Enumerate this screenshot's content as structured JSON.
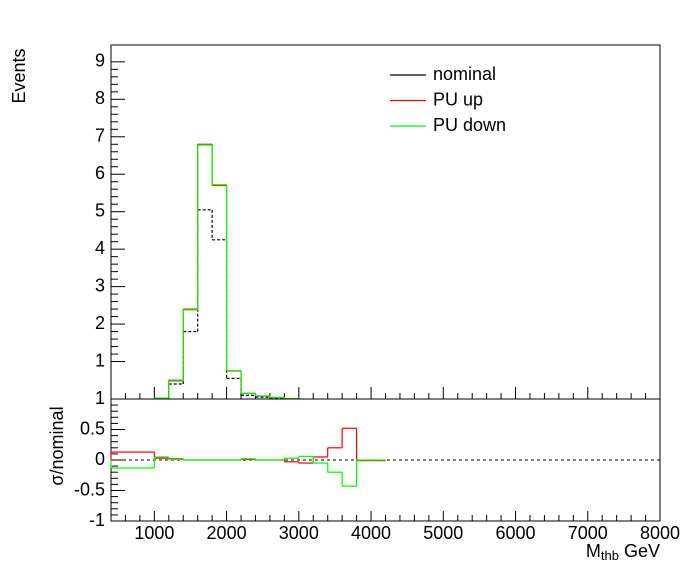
{
  "chart_data": [
    {
      "type": "histogram",
      "ylabel": "Events",
      "bins": [
        1000,
        1200,
        1400,
        1600,
        1800,
        2000,
        2200,
        2400,
        2600,
        2800,
        3000
      ],
      "series": [
        {
          "name": "nominal",
          "color": "#000000",
          "values": [
            0.01,
            0.4,
            1.8,
            5.05,
            4.25,
            0.55,
            0.1,
            0.05,
            0.02,
            0.01
          ]
        },
        {
          "name": "PU up",
          "color": "#ff0000",
          "values": [
            0.02,
            0.5,
            2.4,
            6.8,
            5.7,
            0.75,
            0.15,
            0.08,
            0.04,
            0.01
          ]
        },
        {
          "name": "PU down",
          "color": "#00ff00",
          "values": [
            0.02,
            0.48,
            2.38,
            6.78,
            5.72,
            0.76,
            0.15,
            0.08,
            0.04,
            0.01
          ]
        }
      ],
      "xlim": [
        400,
        8000
      ],
      "ylim": [
        0,
        9.45
      ],
      "yticks": [
        1,
        2,
        3,
        4,
        5,
        6,
        7,
        8,
        9
      ]
    },
    {
      "type": "histogram",
      "ylabel": "σ/nominal",
      "xlabel": "M",
      "xlabel_sub": "thb",
      "xlabel_unit": "GeV",
      "bins": [
        400,
        600,
        800,
        1000,
        1200,
        1400,
        1600,
        1800,
        2000,
        2200,
        2400,
        2600,
        2800,
        3000,
        3200,
        3400,
        3600,
        3800,
        4000,
        4200
      ],
      "series": [
        {
          "color": "#ff0000",
          "values": [
            0.13,
            0.13,
            0.13,
            0.03,
            0.02,
            0,
            0,
            0,
            0,
            0.01,
            0,
            0,
            -0.03,
            -0.05,
            0.05,
            0.2,
            0.52,
            -0.01,
            -0.01
          ]
        },
        {
          "color": "#00ff00",
          "values": [
            -0.13,
            -0.13,
            -0.13,
            0.05,
            0.01,
            0,
            0,
            0,
            0,
            0.02,
            0,
            0,
            0.03,
            0.06,
            -0.05,
            -0.2,
            -0.43,
            0,
            0
          ]
        }
      ],
      "xlim": [
        400,
        8000
      ],
      "ylim": [
        -1,
        1
      ],
      "xticks": [
        1000,
        2000,
        3000,
        4000,
        5000,
        6000,
        7000,
        8000
      ],
      "yticks": [
        -1,
        -0.5,
        0,
        0.5,
        1
      ]
    }
  ]
}
